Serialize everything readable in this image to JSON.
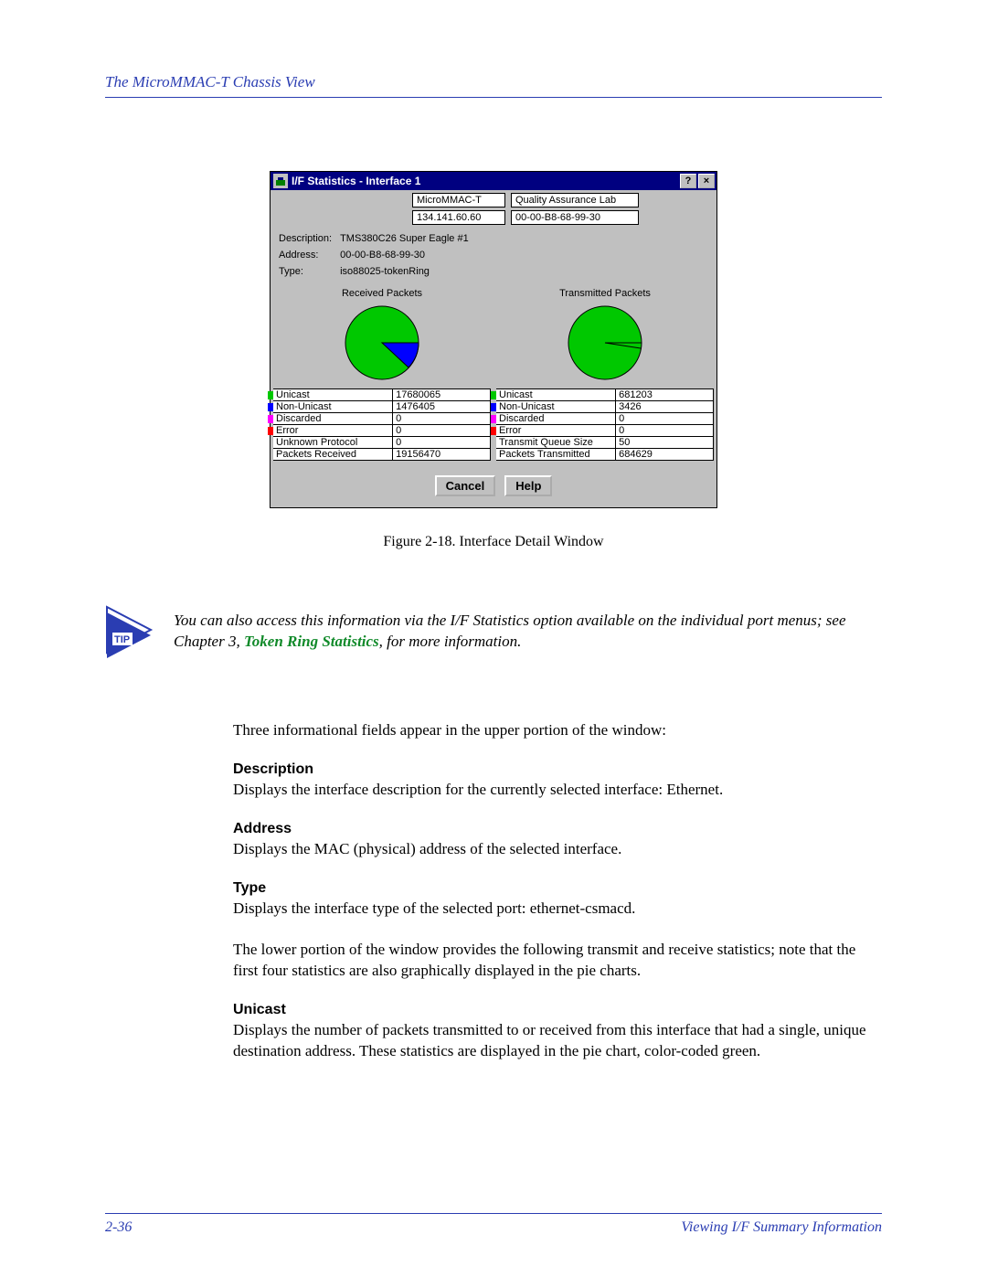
{
  "header": {
    "title": "The MicroMMAC-T Chassis View"
  },
  "dialog": {
    "title": "I/F Statistics - Interface 1",
    "info_boxes": {
      "name": "MicroMMAC-T",
      "ip": "134.141.60.60",
      "lab": "Quality Assurance Lab",
      "mac": "00-00-B8-68-99-30"
    },
    "fields": {
      "desc_label": "Description:",
      "desc_value": "TMS380C26 Super Eagle #1",
      "addr_label": "Address:",
      "addr_value": "00-00-B8-68-99-30",
      "type_label": "Type:",
      "type_value": "iso88025-tokenRing"
    },
    "received": {
      "header": "Received Packets",
      "pie": {
        "slices": [
          {
            "color": "#00c800",
            "pct": 92
          },
          {
            "color": "#0000ff",
            "pct": 8
          }
        ]
      },
      "rows": [
        {
          "swatch": "#00c800",
          "label": "Unicast",
          "value": "17680065"
        },
        {
          "swatch": "#0000ff",
          "label": "Non-Unicast",
          "value": "1476405"
        },
        {
          "swatch": "#ff00ff",
          "label": "Discarded",
          "value": "0"
        },
        {
          "swatch": "#ff0000",
          "label": "Error",
          "value": "0"
        },
        {
          "swatch": null,
          "label": "Unknown Protocol",
          "value": "0"
        },
        {
          "swatch": null,
          "label": "Packets Received",
          "value": "19156470"
        }
      ]
    },
    "transmitted": {
      "header": "Transmitted Packets",
      "pie": {
        "slices": [
          {
            "color": "#00c800",
            "pct": 99.5
          },
          {
            "color": "#0000ff",
            "pct": 0.5
          }
        ]
      },
      "rows": [
        {
          "swatch": "#00c800",
          "label": "Unicast",
          "value": "681203"
        },
        {
          "swatch": "#0000ff",
          "label": "Non-Unicast",
          "value": "3426"
        },
        {
          "swatch": "#ff00ff",
          "label": "Discarded",
          "value": "0"
        },
        {
          "swatch": "#ff0000",
          "label": "Error",
          "value": "0"
        },
        {
          "swatch": null,
          "label": "Transmit Queue Size",
          "value": "50"
        },
        {
          "swatch": null,
          "label": "Packets Transmitted",
          "value": "684629"
        }
      ]
    },
    "buttons": {
      "cancel": "Cancel",
      "help": "Help"
    }
  },
  "figure_caption": "Figure 2-18. Interface Detail Window",
  "tip": {
    "pre": "You can also access this information via the I/F Statistics option available on the individual port menus; see Chapter 3, ",
    "link": "Token Ring Statistics",
    "post": ", for more information."
  },
  "intro_text": "Three informational fields appear in the upper portion of the window:",
  "sections": {
    "desc_h": "Description",
    "desc_t": "Displays the interface description for the currently selected interface: Ethernet.",
    "addr_h": "Address",
    "addr_t": "Displays the MAC (physical) address of the selected interface.",
    "type_h": "Type",
    "type_t": "Displays the interface type of the selected port: ethernet-csmacd.",
    "lower_t": "The lower portion of the window provides the following transmit and receive statistics; note that the first four statistics are also graphically displayed in the pie charts.",
    "uni_h": "Unicast",
    "uni_t": "Displays the number of packets transmitted to or received from this interface that had a single, unique destination address. These statistics are displayed in the pie chart, color-coded green."
  },
  "footer": {
    "page": "2-36",
    "section": "Viewing I/F Summary Information"
  },
  "colors": {
    "accent": "#2a3db2",
    "green_link": "#118a2a",
    "titlebar": "#000080",
    "dialog_bg": "#c0c0c0"
  }
}
